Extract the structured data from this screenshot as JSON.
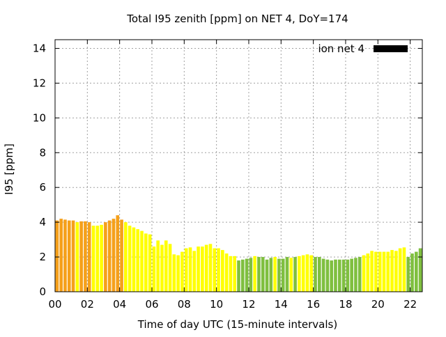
{
  "chart_data": {
    "type": "bar",
    "title": "Total I95 zenith [ppm] on NET 4, DoY=174",
    "xlabel": "Time of day UTC (15-minute intervals)",
    "ylabel": "I95 [ppm]",
    "xlim": [
      0,
      22.75
    ],
    "ylim": [
      0,
      14.5
    ],
    "xticks": [
      "00",
      "02",
      "04",
      "06",
      "08",
      "10",
      "12",
      "14",
      "16",
      "18",
      "20",
      "22"
    ],
    "yticks": [
      "0",
      "2",
      "4",
      "6",
      "8",
      "10",
      "12",
      "14"
    ],
    "grid": true,
    "legend_position": "top-right",
    "legend": [
      {
        "label": "ion net 4",
        "color": "#000000"
      }
    ],
    "bar_interval_hours": 0.25,
    "colors": {
      "orange": "#f5a01a",
      "yellow": "#ffff00",
      "green": "#7fbf3f",
      "legend": "#000000"
    },
    "series": [
      {
        "values": [
          4.1,
          4.2,
          4.15,
          4.1,
          4.1,
          4.0,
          4.05,
          4.05,
          4.0,
          3.8,
          3.8,
          3.85,
          4.0,
          4.1,
          4.2,
          4.4,
          4.15,
          4.0,
          3.8,
          3.7,
          3.6,
          3.5,
          3.35,
          3.3,
          2.6,
          2.95,
          2.7,
          2.95,
          2.75,
          2.15,
          2.1,
          2.3,
          2.5,
          2.55,
          2.35,
          2.6,
          2.6,
          2.7,
          2.75,
          2.5,
          2.5,
          2.4,
          2.2,
          2.05,
          2.05,
          1.8,
          1.85,
          1.9,
          1.95,
          2.05,
          2.0,
          2.0,
          1.85,
          1.95,
          2.0,
          1.9,
          1.9,
          2.0,
          1.95,
          2.0,
          2.05,
          2.1,
          2.15,
          2.1,
          2.0,
          2.0,
          1.9,
          1.85,
          1.8,
          1.85,
          1.85,
          1.85,
          1.85,
          1.9,
          1.95,
          2.0,
          2.1,
          2.2,
          2.35,
          2.3,
          2.3,
          2.3,
          2.3,
          2.4,
          2.35,
          2.5,
          2.55,
          2.0,
          2.2,
          2.3,
          2.5
        ],
        "colors": [
          "orange",
          "orange",
          "orange",
          "orange",
          "orange",
          "yellow",
          "orange",
          "orange",
          "orange",
          "yellow",
          "yellow",
          "yellow",
          "orange",
          "orange",
          "orange",
          "orange",
          "orange",
          "yellow",
          "yellow",
          "yellow",
          "yellow",
          "yellow",
          "yellow",
          "yellow",
          "yellow",
          "yellow",
          "yellow",
          "yellow",
          "yellow",
          "yellow",
          "yellow",
          "yellow",
          "yellow",
          "yellow",
          "yellow",
          "yellow",
          "yellow",
          "yellow",
          "yellow",
          "yellow",
          "yellow",
          "yellow",
          "yellow",
          "yellow",
          "yellow",
          "green",
          "green",
          "green",
          "green",
          "yellow",
          "green",
          "green",
          "green",
          "green",
          "yellow",
          "green",
          "green",
          "green",
          "yellow",
          "green",
          "yellow",
          "yellow",
          "yellow",
          "yellow",
          "green",
          "green",
          "green",
          "green",
          "green",
          "green",
          "green",
          "green",
          "green",
          "green",
          "green",
          "green",
          "yellow",
          "yellow",
          "yellow",
          "yellow",
          "yellow",
          "yellow",
          "yellow",
          "yellow",
          "yellow",
          "yellow",
          "yellow",
          "green",
          "green",
          "green",
          "green"
        ]
      }
    ]
  }
}
